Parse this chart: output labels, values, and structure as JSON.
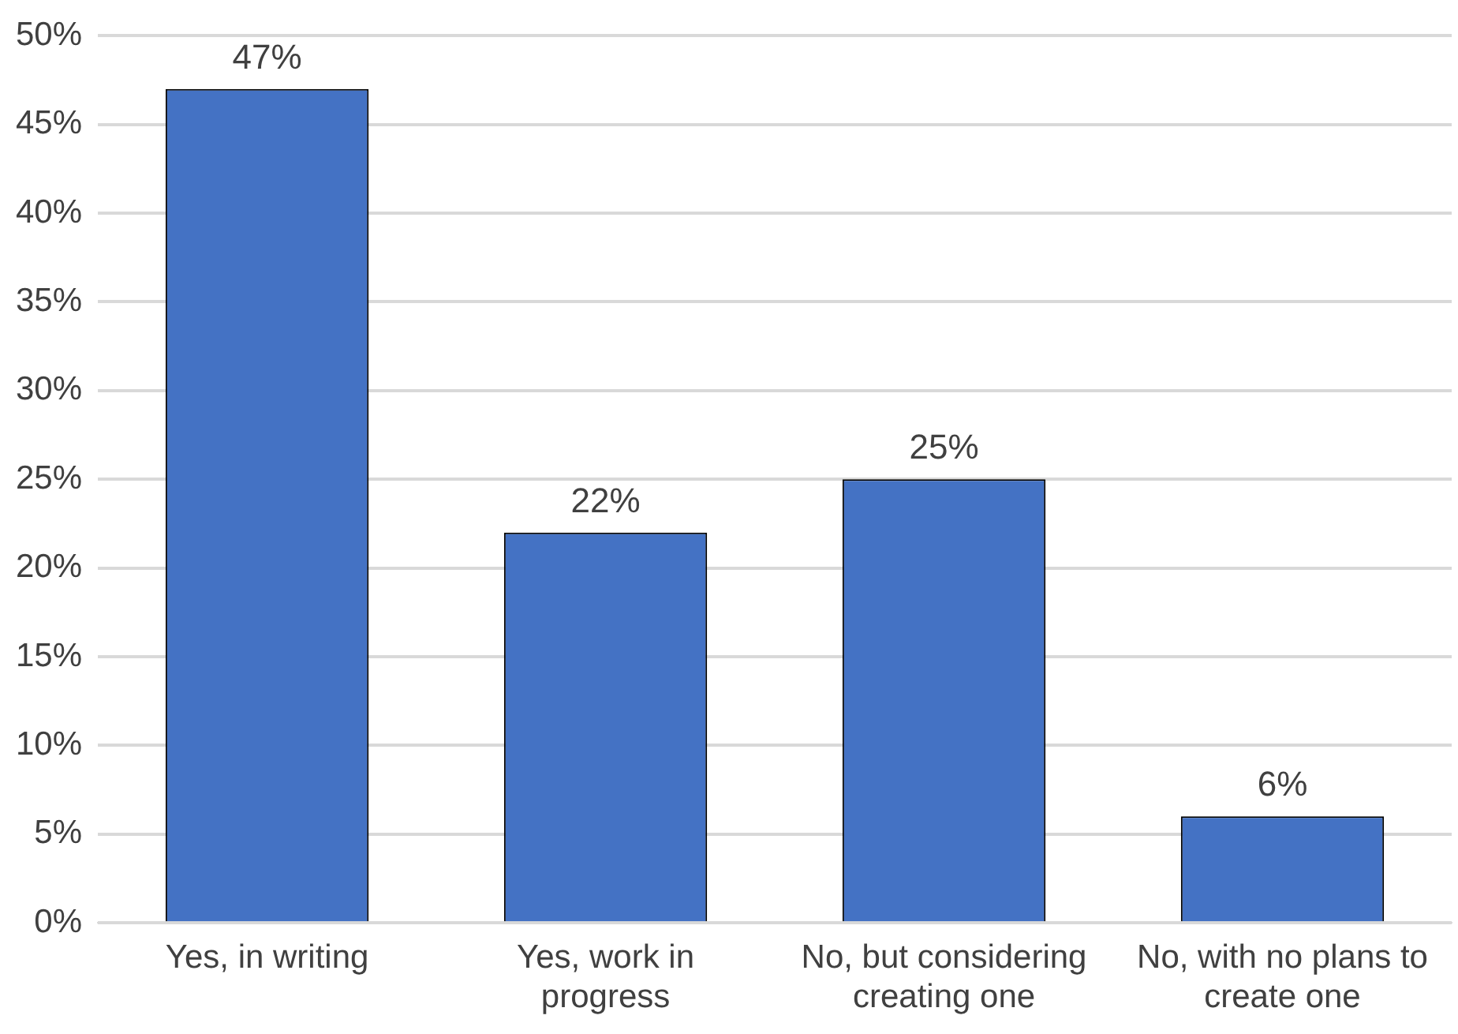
{
  "chart_data": {
    "type": "bar",
    "categories": [
      "Yes, in writing",
      "Yes, work in progress",
      "No, but considering creating one",
      "No, with no plans to create one"
    ],
    "values": [
      47,
      22,
      25,
      6
    ],
    "value_labels": [
      "47%",
      "22%",
      "25%",
      "6%"
    ],
    "color": "#4472c4",
    "ylim": [
      0,
      50
    ],
    "yticks": [
      {
        "value": 0,
        "label": "0%"
      },
      {
        "value": 5,
        "label": "5%"
      },
      {
        "value": 10,
        "label": "10%"
      },
      {
        "value": 15,
        "label": "15%"
      },
      {
        "value": 20,
        "label": "20%"
      },
      {
        "value": 25,
        "label": "25%"
      },
      {
        "value": 30,
        "label": "30%"
      },
      {
        "value": 35,
        "label": "35%"
      },
      {
        "value": 40,
        "label": "40%"
      },
      {
        "value": 45,
        "label": "45%"
      },
      {
        "value": 50,
        "label": "50%"
      }
    ],
    "grid": "y",
    "legend": false
  }
}
